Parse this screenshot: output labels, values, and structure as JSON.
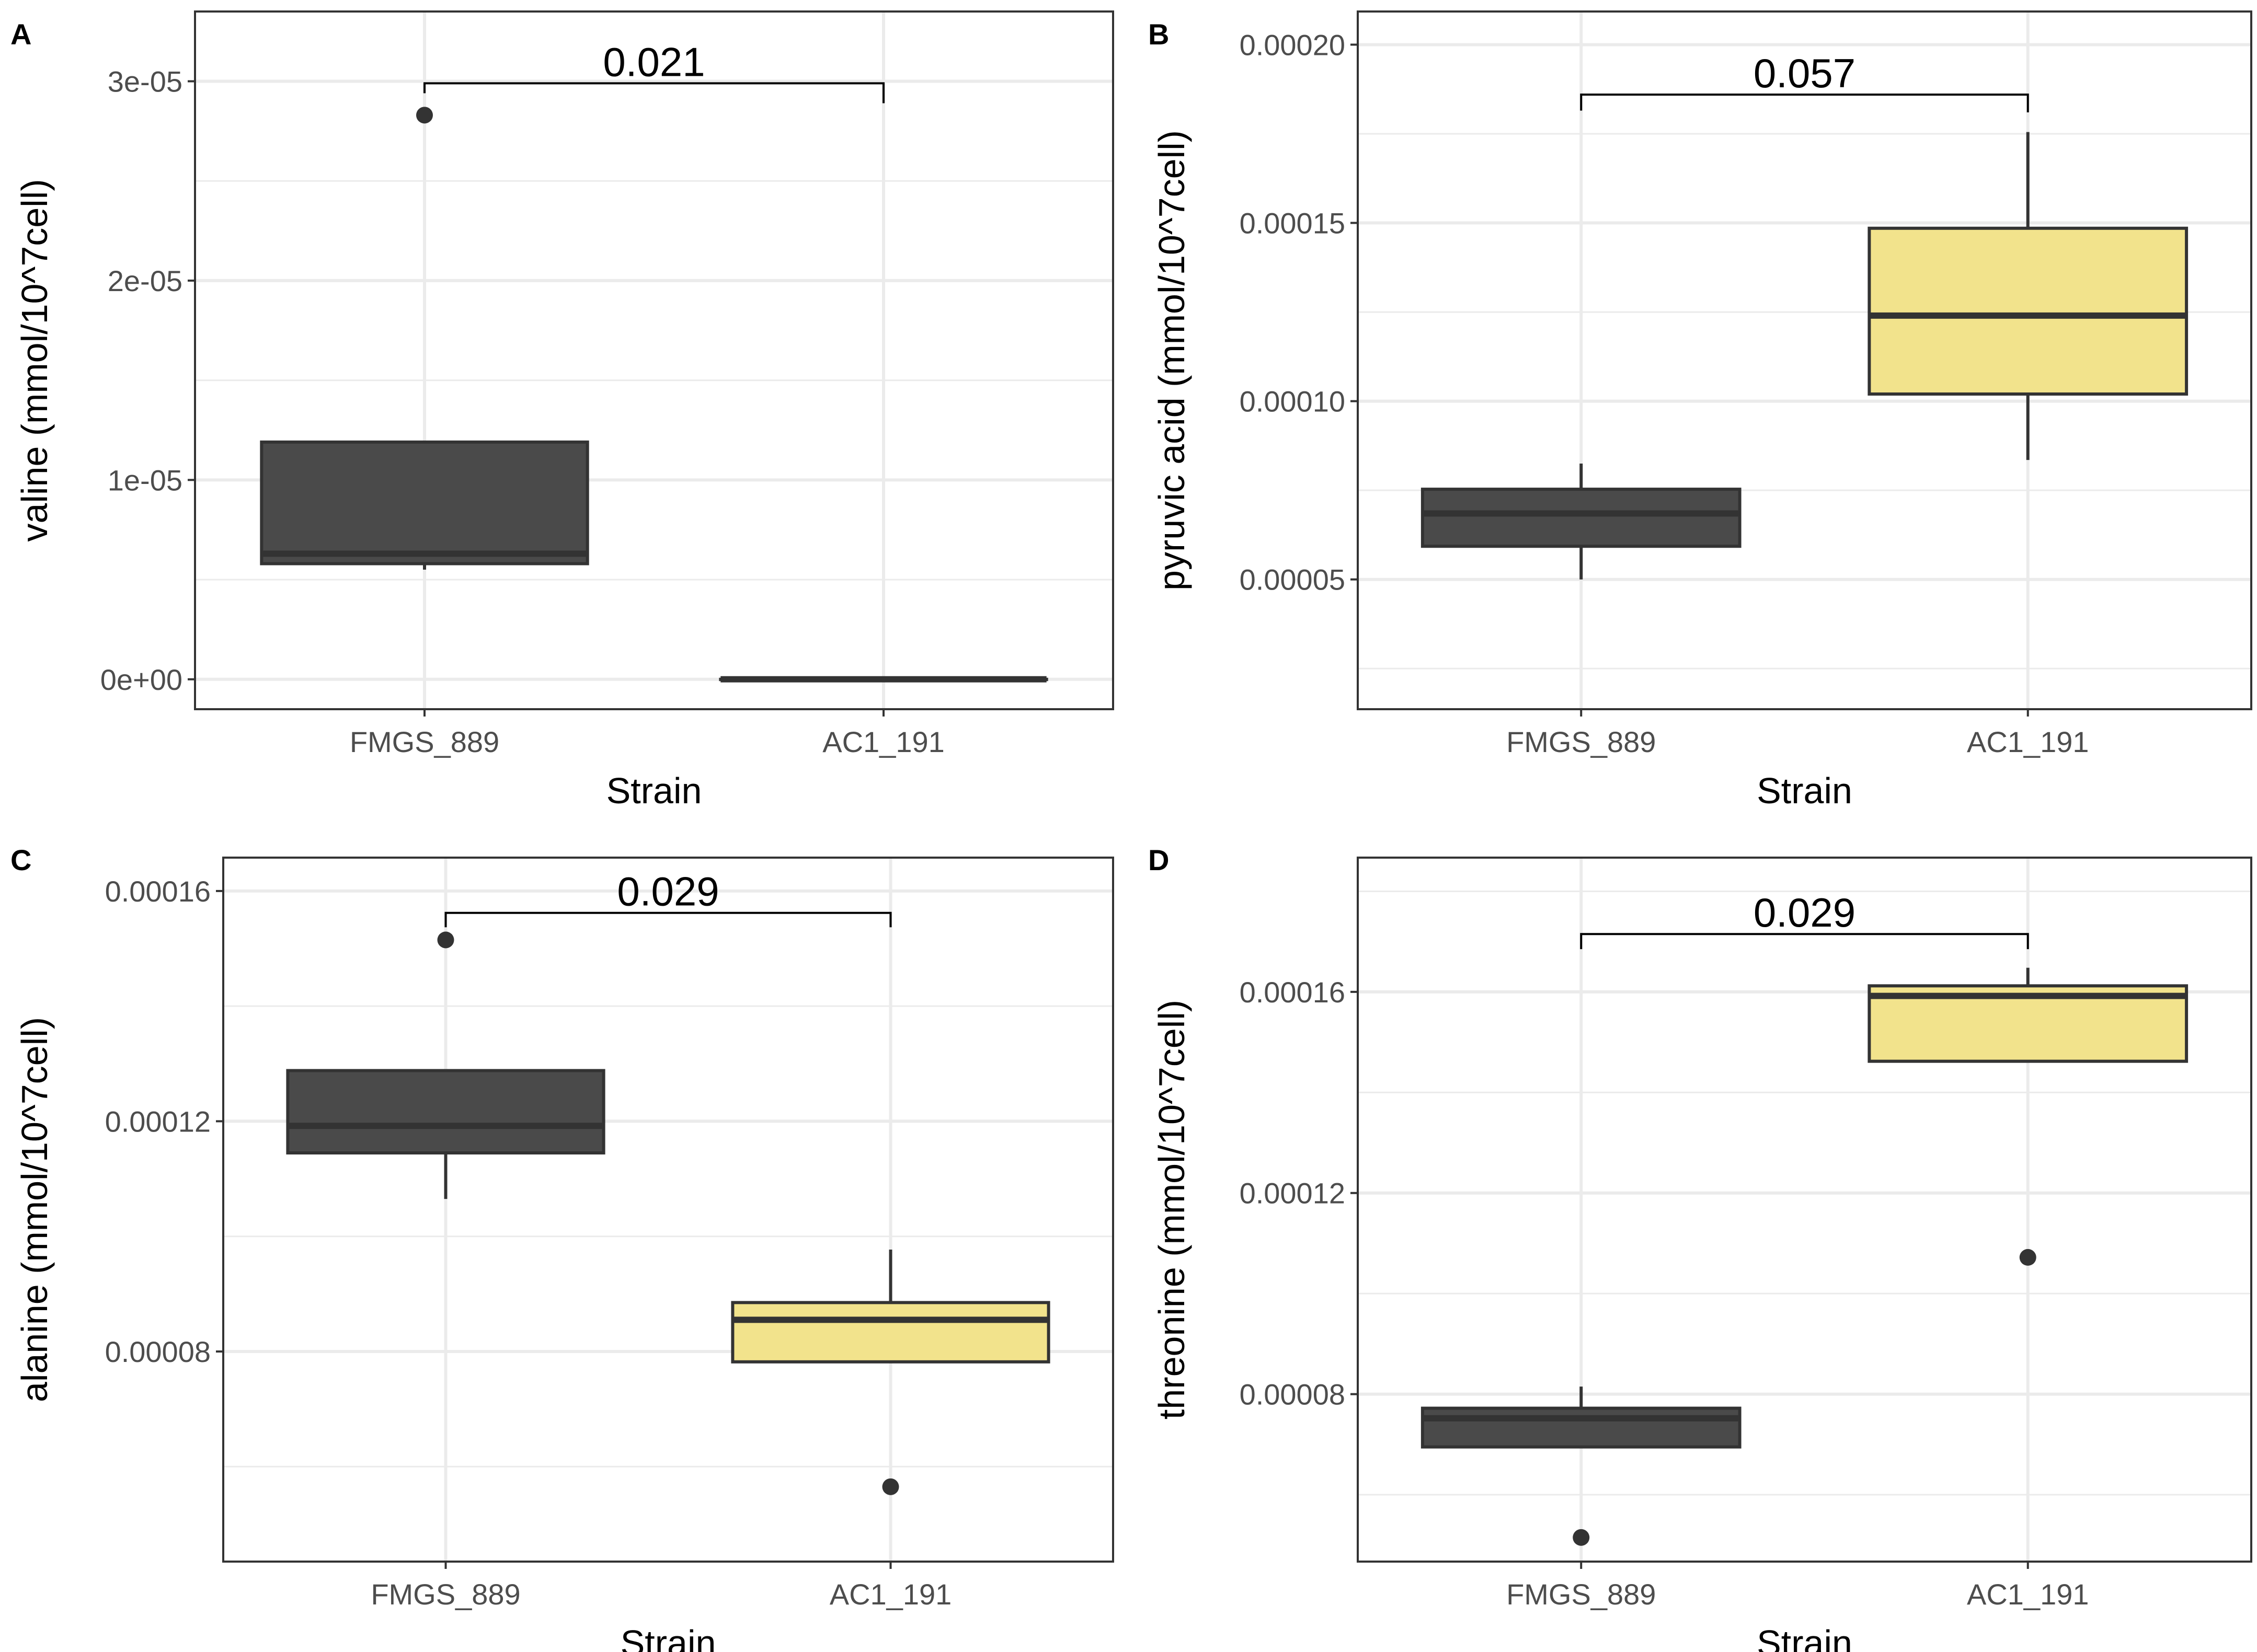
{
  "figure": {
    "colors": {
      "FMGS_889": "#4a4a4a",
      "AC1_191": "#f2e38c",
      "outline": "#333333",
      "grid": "#ebebeb",
      "bracket": "#000000"
    }
  },
  "chart_data": [
    {
      "panel": "A",
      "type": "box",
      "categories": [
        "FMGS_889",
        "AC1_191"
      ],
      "xlabel": "Strain",
      "ylabel": "valine (mmol/10^7cell)",
      "ylim": [
        -1.5e-06,
        3.35e-05
      ],
      "yticks": [
        0,
        1e-05,
        2e-05,
        3e-05
      ],
      "ytick_labels": [
        "0e+00",
        "1e-05",
        "2e-05",
        "3e-05"
      ],
      "boxes": [
        {
          "strain": "FMGS_889",
          "min": 5.5e-06,
          "q1": 5.8e-06,
          "median": 6.3e-06,
          "q3": 1.19e-05,
          "max": 1.19e-05,
          "outliers": [
            2.83e-05
          ]
        },
        {
          "strain": "AC1_191",
          "min": 0,
          "q1": 0,
          "median": 0,
          "q3": 0,
          "max": 0,
          "outliers": []
        }
      ],
      "comparison": {
        "label": "0.021",
        "y_top": 2.99e-05,
        "y_left": 2.94e-05,
        "y_right": 2.89e-05
      }
    },
    {
      "panel": "B",
      "type": "box",
      "categories": [
        "FMGS_889",
        "AC1_191"
      ],
      "xlabel": "Strain",
      "ylabel": "pyruvic acid (mmol/10^7cell)",
      "ylim": [
        1.36e-05,
        0.0002093
      ],
      "yticks": [
        5e-05,
        0.0001,
        0.00015,
        0.0002
      ],
      "ytick_labels": [
        "0.00005",
        "0.00010",
        "0.00015",
        "0.00020"
      ],
      "boxes": [
        {
          "strain": "FMGS_889",
          "min": 5e-05,
          "q1": 5.93e-05,
          "median": 6.85e-05,
          "q3": 7.53e-05,
          "max": 8.25e-05,
          "outliers": []
        },
        {
          "strain": "AC1_191",
          "min": 8.35e-05,
          "q1": 0.000102,
          "median": 0.000124,
          "q3": 0.0001485,
          "max": 0.0001755,
          "outliers": []
        }
      ],
      "comparison": {
        "label": "0.057",
        "y_top": 0.000186,
        "y_left": 0.0001815,
        "y_right": 0.000181
      }
    },
    {
      "panel": "C",
      "type": "box",
      "categories": [
        "FMGS_889",
        "AC1_191"
      ],
      "xlabel": "Strain",
      "ylabel": "alanine (mmol/10^7cell)",
      "ylim": [
        4.35e-05,
        0.0001658
      ],
      "yticks": [
        8e-05,
        0.00012,
        0.00016
      ],
      "ytick_labels": [
        "0.00008",
        "0.00012",
        "0.00016"
      ],
      "boxes": [
        {
          "strain": "FMGS_889",
          "min": 0.0001065,
          "q1": 0.0001145,
          "median": 0.0001192,
          "q3": 0.0001288,
          "max": 0.0001288,
          "outliers": [
            0.0001515
          ]
        },
        {
          "strain": "AC1_191",
          "min": 7.82e-05,
          "q1": 7.82e-05,
          "median": 8.55e-05,
          "q3": 8.85e-05,
          "max": 9.77e-05,
          "outliers": [
            5.65e-05
          ]
        }
      ],
      "comparison": {
        "label": "0.029",
        "y_top": 0.0001562,
        "y_left": 0.0001537,
        "y_right": 0.0001537
      }
    },
    {
      "panel": "D",
      "type": "box",
      "categories": [
        "FMGS_889",
        "AC1_191"
      ],
      "xlabel": "Strain",
      "ylabel": "threonine (mmol/10^7cell)",
      "ylim": [
        4.67e-05,
        0.0001867
      ],
      "yticks": [
        8e-05,
        0.00012,
        0.00016
      ],
      "ytick_labels": [
        "0.00008",
        "0.00012",
        "0.00016"
      ],
      "boxes": [
        {
          "strain": "FMGS_889",
          "min": 6.95e-05,
          "q1": 6.95e-05,
          "median": 7.52e-05,
          "q3": 7.72e-05,
          "max": 8.15e-05,
          "outliers": [
            5.15e-05
          ]
        },
        {
          "strain": "AC1_191",
          "min": 0.0001462,
          "q1": 0.0001462,
          "median": 0.0001592,
          "q3": 0.0001612,
          "max": 0.0001648,
          "outliers": [
            0.0001072
          ]
        }
      ],
      "comparison": {
        "label": "0.029",
        "y_top": 0.0001715,
        "y_left": 0.0001685,
        "y_right": 0.0001685
      }
    }
  ]
}
